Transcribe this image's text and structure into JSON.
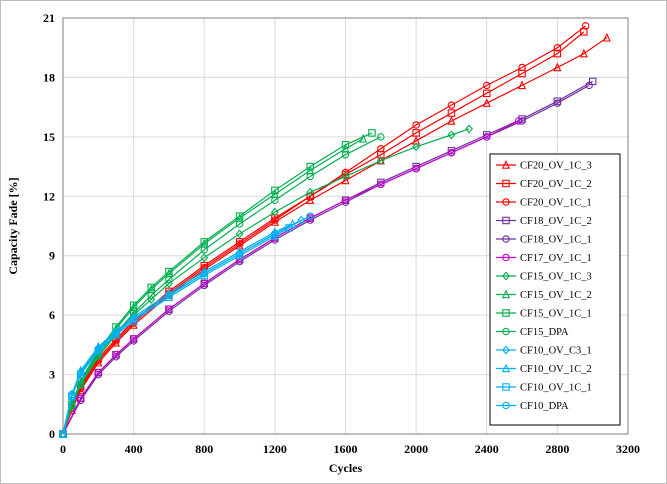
{
  "chart_data": {
    "type": "scatter",
    "title": "",
    "xlabel": "Cycles",
    "ylabel": "Capacity Fade [%]",
    "xlim": [
      0,
      3200
    ],
    "ylim": [
      0,
      21
    ],
    "xticks": [
      0,
      400,
      800,
      1200,
      1600,
      2000,
      2400,
      2800,
      3200
    ],
    "yticks": [
      0,
      3,
      6,
      9,
      12,
      15,
      18,
      21
    ],
    "grid": true,
    "legend_position": "right",
    "series": [
      {
        "name": "CF20_OV_1C_3",
        "color": "#ff0000",
        "marker": "triangle",
        "x": [
          0,
          50,
          100,
          200,
          300,
          400,
          600,
          800,
          1000,
          1200,
          1400,
          1600,
          1800,
          2000,
          2200,
          2400,
          2600,
          2800,
          2950,
          3080
        ],
        "y": [
          0,
          1.2,
          2.2,
          3.6,
          4.6,
          5.5,
          7.0,
          8.3,
          9.5,
          10.7,
          11.8,
          12.8,
          13.8,
          14.8,
          15.8,
          16.7,
          17.6,
          18.5,
          19.2,
          20.0
        ]
      },
      {
        "name": "CF20_OV_1C_2",
        "color": "#ff0000",
        "marker": "square",
        "x": [
          0,
          50,
          100,
          200,
          300,
          400,
          600,
          800,
          1000,
          1200,
          1400,
          1600,
          1800,
          2000,
          2200,
          2400,
          2600,
          2800,
          2950
        ],
        "y": [
          0,
          1.3,
          2.4,
          3.8,
          4.8,
          5.7,
          7.2,
          8.5,
          9.7,
          10.9,
          12.0,
          13.1,
          14.1,
          15.2,
          16.2,
          17.2,
          18.2,
          19.2,
          20.3
        ]
      },
      {
        "name": "CF20_OV_1C_1",
        "color": "#ff0000",
        "marker": "circle",
        "x": [
          0,
          50,
          100,
          200,
          300,
          400,
          600,
          800,
          1000,
          1200,
          1400,
          1600,
          1800,
          2000,
          2200,
          2400,
          2600,
          2800,
          2960
        ],
        "y": [
          0,
          1.3,
          2.3,
          3.7,
          4.7,
          5.6,
          7.1,
          8.4,
          9.6,
          10.8,
          12.0,
          13.2,
          14.4,
          15.6,
          16.6,
          17.6,
          18.5,
          19.5,
          20.6
        ]
      },
      {
        "name": "CF18_OV_1C_2",
        "color": "#7030a0",
        "marker": "square",
        "x": [
          0,
          100,
          200,
          300,
          400,
          600,
          800,
          1000,
          1200,
          1400,
          1600,
          1800,
          2000,
          2200,
          2400,
          2600,
          2800,
          3000
        ],
        "y": [
          0,
          1.8,
          3.1,
          4.0,
          4.8,
          6.3,
          7.6,
          8.8,
          9.9,
          10.9,
          11.8,
          12.7,
          13.5,
          14.3,
          15.1,
          15.9,
          16.8,
          17.8
        ]
      },
      {
        "name": "CF18_OV_1C_1",
        "color": "#7030a0",
        "marker": "circle",
        "x": [
          0,
          100,
          200,
          300,
          400,
          600,
          800,
          1000,
          1200,
          1400,
          1600,
          1800,
          2000,
          2200,
          2400,
          2600,
          2800,
          2980
        ],
        "y": [
          0,
          1.7,
          3.0,
          3.9,
          4.7,
          6.2,
          7.5,
          8.7,
          9.8,
          10.8,
          11.7,
          12.6,
          13.4,
          14.2,
          15.0,
          15.8,
          16.7,
          17.6
        ]
      },
      {
        "name": "CF17_OV_1C_1",
        "color": "#cc00cc",
        "marker": "circle",
        "x": [
          0,
          100,
          200,
          300,
          400,
          600,
          800,
          1000,
          1200,
          1400,
          1600,
          1800,
          2000,
          2200,
          2400,
          2580
        ],
        "y": [
          0,
          1.8,
          3.1,
          4.0,
          4.8,
          6.3,
          7.6,
          8.8,
          9.9,
          10.9,
          11.8,
          12.6,
          13.4,
          14.2,
          15.0,
          15.8
        ]
      },
      {
        "name": "CF15_OV_1C_3",
        "color": "#00b050",
        "marker": "diamond",
        "x": [
          0,
          50,
          100,
          200,
          300,
          400,
          500,
          600,
          800,
          1000,
          1200,
          1400,
          1600,
          1800,
          2000,
          2200,
          2300
        ],
        "y": [
          0,
          1.4,
          2.5,
          3.9,
          5.0,
          6.0,
          6.8,
          7.6,
          8.9,
          10.1,
          11.2,
          12.2,
          13.0,
          13.8,
          14.5,
          15.1,
          15.4
        ]
      },
      {
        "name": "CF15_OV_1C_2",
        "color": "#00b050",
        "marker": "triangle",
        "x": [
          0,
          50,
          100,
          200,
          300,
          400,
          500,
          600,
          800,
          1000,
          1200,
          1400,
          1600,
          1700
        ],
        "y": [
          0,
          1.5,
          2.6,
          4.1,
          5.3,
          6.4,
          7.3,
          8.1,
          9.6,
          10.9,
          12.1,
          13.3,
          14.4,
          14.9
        ]
      },
      {
        "name": "CF15_OV_1C_1",
        "color": "#00b050",
        "marker": "square",
        "x": [
          0,
          50,
          100,
          200,
          300,
          400,
          500,
          600,
          800,
          1000,
          1200,
          1400,
          1600,
          1750
        ],
        "y": [
          0,
          1.5,
          2.7,
          4.2,
          5.4,
          6.5,
          7.4,
          8.2,
          9.7,
          11.0,
          12.3,
          13.5,
          14.6,
          15.2
        ]
      },
      {
        "name": "CF15_DPA",
        "color": "#00b050",
        "marker": "circle",
        "x": [
          0,
          50,
          100,
          200,
          300,
          400,
          500,
          600,
          800,
          1000,
          1200,
          1400,
          1600,
          1800
        ],
        "y": [
          0,
          1.4,
          2.5,
          4.0,
          5.1,
          6.1,
          7.0,
          7.8,
          9.3,
          10.6,
          11.8,
          13.0,
          14.1,
          15.0
        ]
      },
      {
        "name": "CF10_OV_C3_1",
        "color": "#00b0f0",
        "marker": "diamond",
        "x": [
          0,
          50,
          100,
          200,
          300,
          400,
          600,
          800,
          1000,
          1200,
          1350
        ],
        "y": [
          0,
          1.9,
          3.1,
          4.3,
          5.1,
          5.8,
          7.0,
          8.1,
          9.1,
          10.1,
          10.8
        ]
      },
      {
        "name": "CF10_OV_1C_2",
        "color": "#00b0f0",
        "marker": "triangle",
        "x": [
          0,
          50,
          100,
          200,
          300,
          400,
          600,
          800,
          1000,
          1200,
          1300
        ],
        "y": [
          0,
          2.0,
          3.2,
          4.4,
          5.2,
          5.9,
          7.1,
          8.2,
          9.2,
          10.2,
          10.6
        ]
      },
      {
        "name": "CF10_OV_1C_1",
        "color": "#00b0f0",
        "marker": "square",
        "x": [
          0,
          50,
          100,
          200,
          300,
          400,
          600,
          800,
          1000,
          1200,
          1280
        ],
        "y": [
          0,
          1.9,
          3.0,
          4.2,
          5.0,
          5.7,
          6.9,
          8.0,
          9.0,
          10.0,
          10.4
        ]
      },
      {
        "name": "CF10_DPA",
        "color": "#00b0f0",
        "marker": "circle",
        "x": [
          0,
          50,
          100,
          200,
          300,
          400,
          600,
          800,
          1000,
          1200,
          1400
        ],
        "y": [
          0,
          2.0,
          3.1,
          4.3,
          5.1,
          5.8,
          7.0,
          8.1,
          9.1,
          10.1,
          11.0
        ]
      }
    ]
  }
}
